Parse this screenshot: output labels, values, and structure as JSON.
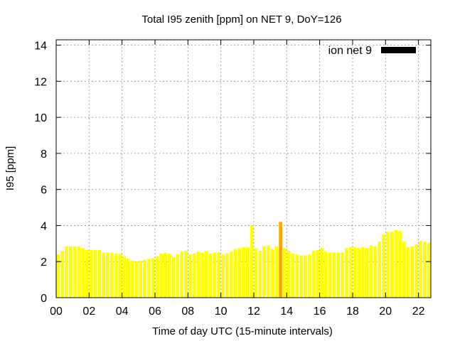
{
  "chart_data": {
    "type": "bar",
    "title": "Total I95 zenith [ppm] on NET 9, DoY=126",
    "xlabel": "Time of day UTC (15-minute intervals)",
    "ylabel": "I95 [ppm]",
    "ylim": [
      0,
      14.3
    ],
    "xlim": [
      0,
      22.75
    ],
    "yticks": [
      0,
      2,
      4,
      6,
      8,
      10,
      12,
      14
    ],
    "xticks": [
      0,
      2,
      4,
      6,
      8,
      10,
      12,
      14,
      16,
      18,
      20,
      22
    ],
    "xtick_labels": [
      "00",
      "02",
      "04",
      "06",
      "08",
      "10",
      "12",
      "14",
      "16",
      "18",
      "20",
      "22"
    ],
    "ytick_labels": [
      "0",
      "2",
      "4",
      "6",
      "8",
      "10",
      "12",
      "14"
    ],
    "grid": true,
    "legend": {
      "position": "top-right",
      "entries": [
        {
          "label": "ion net 9",
          "color": "#000000"
        }
      ]
    },
    "bar_width_hours": 0.2,
    "series": [
      {
        "x": [
          0.0,
          0.25,
          0.5,
          0.75,
          1.0,
          1.25,
          1.5,
          1.75,
          2.0,
          2.25,
          2.5,
          2.75,
          3.0,
          3.25,
          3.5,
          3.75,
          4.0,
          4.25,
          4.5,
          4.75,
          5.0,
          5.25,
          5.5,
          5.75,
          6.0,
          6.25,
          6.5,
          6.75,
          7.0,
          7.25,
          7.5,
          7.75,
          8.0,
          8.25,
          8.5,
          8.75,
          9.0,
          9.25,
          9.5,
          9.75,
          10.0,
          10.25,
          10.5,
          10.75,
          11.0,
          11.25,
          11.5,
          11.75,
          12.0,
          12.25,
          12.5,
          12.75,
          13.0,
          13.25,
          13.5,
          13.75,
          14.0,
          14.25,
          14.5,
          14.75,
          15.0,
          15.25,
          15.5,
          15.75,
          16.0,
          16.25,
          16.5,
          16.75,
          17.0,
          17.25,
          17.5,
          17.75,
          18.0,
          18.25,
          18.5,
          18.75,
          19.0,
          19.25,
          19.5,
          19.75,
          20.0,
          20.25,
          20.5,
          20.75,
          21.0,
          21.25,
          21.5,
          21.75,
          22.0,
          22.25,
          22.5
        ],
        "values": [
          2.4,
          2.6,
          2.85,
          2.85,
          2.85,
          2.85,
          2.75,
          2.65,
          2.65,
          2.65,
          2.65,
          2.5,
          2.5,
          2.5,
          2.45,
          2.45,
          2.3,
          2.15,
          2.05,
          2.0,
          2.05,
          2.1,
          2.15,
          2.2,
          2.3,
          2.45,
          2.5,
          2.45,
          2.25,
          2.4,
          2.55,
          2.6,
          2.4,
          2.45,
          2.55,
          2.5,
          2.6,
          2.45,
          2.5,
          2.5,
          2.4,
          2.45,
          2.55,
          2.7,
          2.75,
          2.8,
          2.8,
          4.0,
          2.75,
          2.6,
          2.85,
          2.9,
          2.7,
          2.85,
          4.2,
          2.75,
          2.6,
          2.45,
          2.4,
          2.35,
          2.35,
          2.4,
          2.6,
          2.65,
          2.75,
          2.55,
          2.5,
          2.5,
          2.5,
          2.5,
          2.75,
          2.8,
          2.8,
          2.75,
          2.8,
          2.75,
          2.9,
          2.85,
          3.1,
          3.5,
          3.65,
          3.65,
          3.75,
          3.7,
          3.1,
          2.8,
          2.85,
          2.95,
          3.15,
          3.1,
          3.05
        ],
        "colors": {
          "default": "#ffff00",
          "highlights": [
            {
              "x": 11.75,
              "color": "#ffff00"
            },
            {
              "x": 13.5,
              "color": "#ffa500"
            }
          ]
        }
      }
    ]
  }
}
